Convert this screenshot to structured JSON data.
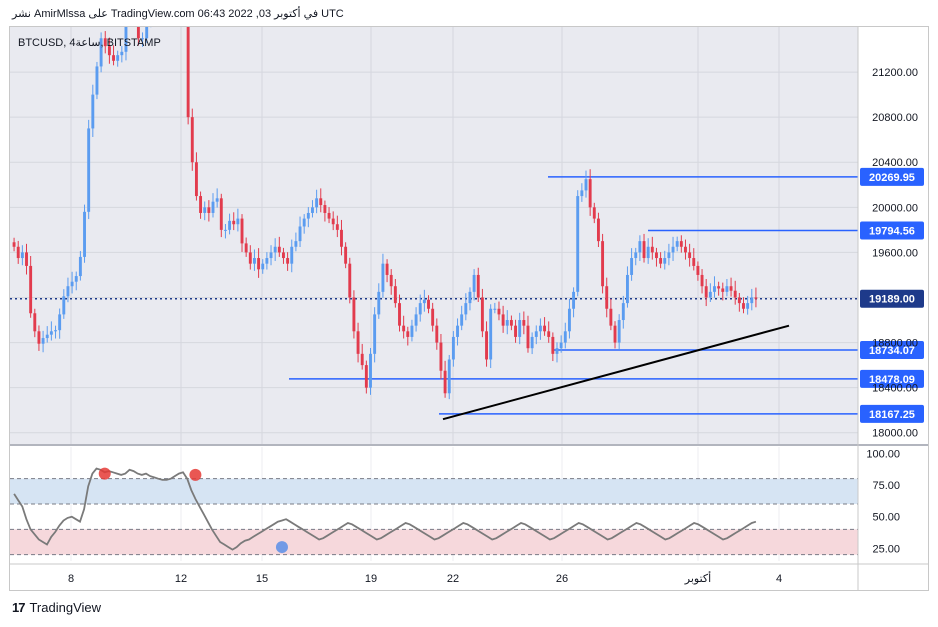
{
  "header": {
    "publish_line": "نشر AmirMlssa على TradingView.com في أكتوبر 03, 2022 06:43 UTC"
  },
  "symbol_label": "BTCUSD, 4ساعة, BITSTAMP",
  "footer": {
    "brand": "TradingView",
    "logo": "17"
  },
  "colors": {
    "up": "#5b9cf0",
    "down": "#e23b4d",
    "level_line": "#2962ff",
    "last_price": "#1e3a8a",
    "rsi_line": "#7a7a7a",
    "rsi_upper_band": "#d6e4f3",
    "rsi_lower_band": "#f6d8dc",
    "trend_line": "#000000",
    "background": "#e9eaf0"
  },
  "chart_data": [
    {
      "type": "candlestick",
      "title": "BTCUSD, 4ساعة, BITSTAMP",
      "y_ticks": [
        18000,
        18400,
        18800,
        19200,
        19600,
        20000,
        20400,
        20800,
        21200
      ],
      "y_tick_labels": [
        "18000.00",
        "18400.00",
        "18800.00",
        "",
        "19600.00",
        "20000.00",
        "20400.00",
        "20800.00",
        "21200.00"
      ],
      "ylim": [
        17900,
        21600
      ],
      "x_tick_labels": [
        "8",
        "12",
        "15",
        "19",
        "22",
        "26",
        "أكتوبر",
        "4"
      ],
      "horizontal_levels": [
        {
          "value": 20269.95,
          "label": "20269.95"
        },
        {
          "value": 19794.56,
          "label": "19794.56"
        },
        {
          "value": 18734.07,
          "label": "18734.07"
        },
        {
          "value": 18478.09,
          "label": "18478.09"
        },
        {
          "value": 18167.25,
          "label": "18167.25"
        }
      ],
      "last_price": {
        "value": 19189.0,
        "label": "19189.00"
      },
      "trend_line": {
        "from": 18120,
        "to": 18950
      },
      "candles_close": [
        19650,
        19550,
        19600,
        19480,
        19060,
        18900,
        18790,
        18840,
        18870,
        18900,
        18910,
        19050,
        19210,
        19300,
        19340,
        19390,
        19560,
        19960,
        20700,
        21000,
        21250,
        21500,
        21430,
        21350,
        21300,
        21350,
        21380,
        21700,
        21800,
        21700,
        21500,
        21500,
        21650,
        21700,
        21750,
        21760,
        21800,
        21900,
        21900,
        21920,
        21930,
        21950,
        20800,
        20400,
        20100,
        19950,
        20000,
        19950,
        20050,
        20080,
        19800,
        19800,
        19880,
        19850,
        19900,
        19680,
        19600,
        19500,
        19550,
        19450,
        19500,
        19550,
        19600,
        19650,
        19600,
        19550,
        19500,
        19650,
        19700,
        19830,
        19900,
        19950,
        20000,
        20080,
        20020,
        19950,
        19900,
        19850,
        19800,
        19650,
        19500,
        19200,
        18900,
        18700,
        18600,
        18400,
        18700,
        19050,
        19250,
        19500,
        19400,
        19300,
        19150,
        18950,
        18900,
        18850,
        18950,
        19050,
        19150,
        19180,
        19100,
        18950,
        18800,
        18550,
        18350,
        18650,
        18850,
        18950,
        19050,
        19150,
        19250,
        19400,
        19200,
        18900,
        18650,
        19100,
        19100,
        19050,
        18950,
        19000,
        18950,
        18850,
        19000,
        18950,
        18750,
        18850,
        18900,
        18950,
        18900,
        18850,
        18700,
        18750,
        18800,
        18900,
        19100,
        19250,
        20100,
        20150,
        20250,
        20000,
        19900,
        19700,
        19300,
        19100,
        18950,
        18800,
        19000,
        19150,
        19400,
        19550,
        19600,
        19700,
        19550,
        19650,
        19600,
        19550,
        19500,
        19550,
        19600,
        19650,
        19700,
        19650,
        19600,
        19550,
        19480,
        19400,
        19300,
        19200,
        19250,
        19300,
        19280,
        19250,
        19300,
        19260,
        19200,
        19150,
        19100,
        19150,
        19200,
        19189
      ],
      "rsi": {
        "y_ticks": [
          25,
          50,
          75,
          100
        ],
        "y_tick_labels": [
          "25.00",
          "50.00",
          "75.00",
          "100.00"
        ],
        "ylim": [
          15,
          105
        ],
        "upper_band": [
          60,
          80
        ],
        "lower_band": [
          20,
          40
        ],
        "values": [
          68,
          63,
          58,
          48,
          40,
          36,
          32,
          30,
          28,
          34,
          38,
          43,
          47,
          49,
          50,
          48,
          46,
          56,
          74,
          84,
          88,
          87,
          85,
          86,
          85,
          84,
          83,
          84,
          87,
          86,
          84,
          83,
          84,
          82,
          81,
          80,
          79,
          79,
          80,
          82,
          84,
          85,
          80,
          71,
          64,
          58,
          52,
          46,
          40,
          35,
          30,
          28,
          26,
          24,
          26,
          29,
          31,
          32,
          34,
          36,
          38,
          40,
          42,
          44,
          46,
          47,
          48,
          46,
          44,
          42,
          40,
          38,
          36,
          34,
          32,
          33,
          35,
          37,
          39,
          41,
          43,
          45,
          44,
          42,
          40,
          38,
          36,
          34,
          32,
          33,
          35,
          37,
          39,
          41,
          43,
          45,
          44,
          42,
          40,
          38,
          36,
          34,
          32,
          33,
          35,
          37,
          39,
          41,
          43,
          45,
          44,
          42,
          40,
          38,
          36,
          34,
          32,
          33,
          35,
          37,
          39,
          41,
          43,
          45,
          44,
          42,
          40,
          38,
          36,
          34,
          32,
          33,
          35,
          37,
          39,
          41,
          43,
          45,
          44,
          42,
          40,
          38,
          36,
          34,
          32,
          33,
          35,
          37,
          39,
          41,
          43,
          45,
          44,
          42,
          40,
          38,
          36,
          34,
          32,
          33,
          35,
          37,
          39,
          41,
          43,
          45,
          44,
          42,
          40,
          38,
          36,
          34,
          32,
          33,
          35,
          37,
          39,
          41,
          43,
          45,
          46
        ],
        "overbought_markers": [
          84,
          83
        ],
        "oversold_marker": 26
      }
    }
  ]
}
